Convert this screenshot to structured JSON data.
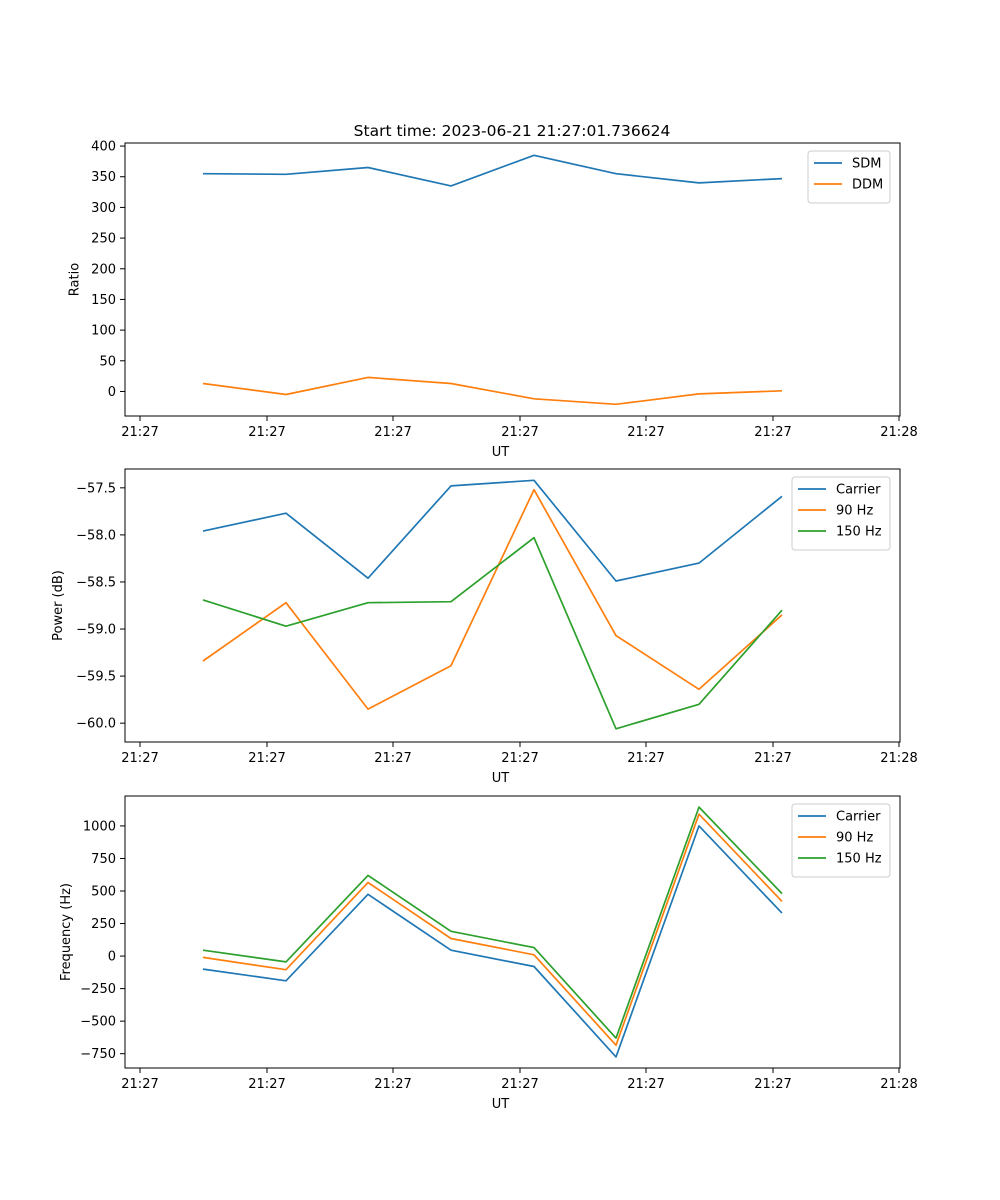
{
  "figure_title": "Start time: 2023-06-21 21:27:01.736624",
  "colors": {
    "blue": "#1f77b4",
    "orange": "#ff7f0e",
    "green": "#2ca02c"
  },
  "chart_data": [
    {
      "type": "line",
      "title": "Start time: 2023-06-21 21:27:01.736624",
      "xlabel": "UT",
      "ylabel": "Ratio",
      "x_tick_labels": [
        "21:27",
        "21:27",
        "21:27",
        "21:27",
        "21:27",
        "21:27",
        "21:27"
      ],
      "x_end_tick_label": "21:28",
      "y_ticks": [
        0,
        50,
        100,
        150,
        200,
        250,
        300,
        350,
        400
      ],
      "y_tick_labels": [
        "0",
        "50",
        "100",
        "150",
        "200",
        "250",
        "300",
        "350",
        "400"
      ],
      "ylim": [
        -40,
        405
      ],
      "grid": false,
      "legend": "top-right",
      "series": [
        {
          "name": "SDM",
          "color": "#1f77b4",
          "values": [
            355,
            354,
            365,
            335,
            385,
            355,
            340,
            347
          ]
        },
        {
          "name": "DDM",
          "color": "#ff7f0e",
          "values": [
            13,
            -5,
            23,
            13,
            -12,
            -21,
            -4,
            1
          ]
        }
      ]
    },
    {
      "type": "line",
      "title": "",
      "xlabel": "UT",
      "ylabel": "Power (dB)",
      "x_tick_labels": [
        "21:27",
        "21:27",
        "21:27",
        "21:27",
        "21:27",
        "21:27",
        "21:27"
      ],
      "x_end_tick_label": "21:28",
      "y_ticks": [
        -60.0,
        -59.5,
        -59.0,
        -58.5,
        -58.0,
        -57.5
      ],
      "y_tick_labels": [
        "−60.0",
        "−59.5",
        "−59.0",
        "−58.5",
        "−58.0",
        "−57.5"
      ],
      "ylim": [
        -60.2,
        -57.3
      ],
      "grid": false,
      "legend": "top-right",
      "series": [
        {
          "name": "Carrier",
          "color": "#1f77b4",
          "values": [
            -57.96,
            -57.77,
            -58.46,
            -57.48,
            -57.42,
            -58.49,
            -58.3,
            -57.59
          ]
        },
        {
          "name": "90 Hz",
          "color": "#ff7f0e",
          "values": [
            -59.34,
            -58.72,
            -59.85,
            -59.39,
            -57.52,
            -59.07,
            -59.64,
            -58.85
          ]
        },
        {
          "name": "150 Hz",
          "color": "#2ca02c",
          "values": [
            -58.69,
            -58.97,
            -58.72,
            -58.71,
            -58.03,
            -60.06,
            -59.8,
            -58.8
          ]
        }
      ]
    },
    {
      "type": "line",
      "title": "",
      "xlabel": "UT",
      "ylabel": "Frequency (Hz)",
      "x_tick_labels": [
        "21:27",
        "21:27",
        "21:27",
        "21:27",
        "21:27",
        "21:27",
        "21:27"
      ],
      "x_end_tick_label": "21:28",
      "y_ticks": [
        -750,
        -500,
        -250,
        0,
        250,
        500,
        750,
        1000
      ],
      "y_tick_labels": [
        "−750",
        "−500",
        "−250",
        "0",
        "250",
        "500",
        "750",
        "1000"
      ],
      "ylim": [
        -860,
        1230
      ],
      "grid": false,
      "legend": "top-right",
      "series": [
        {
          "name": "Carrier",
          "color": "#1f77b4",
          "values": [
            -100,
            -190,
            475,
            45,
            -80,
            -775,
            1000,
            330
          ]
        },
        {
          "name": "90 Hz",
          "color": "#ff7f0e",
          "values": [
            -10,
            -105,
            565,
            135,
            10,
            -685,
            1090,
            420
          ]
        },
        {
          "name": "150 Hz",
          "color": "#2ca02c",
          "values": [
            45,
            -45,
            620,
            190,
            65,
            -630,
            1145,
            480
          ]
        }
      ]
    }
  ]
}
